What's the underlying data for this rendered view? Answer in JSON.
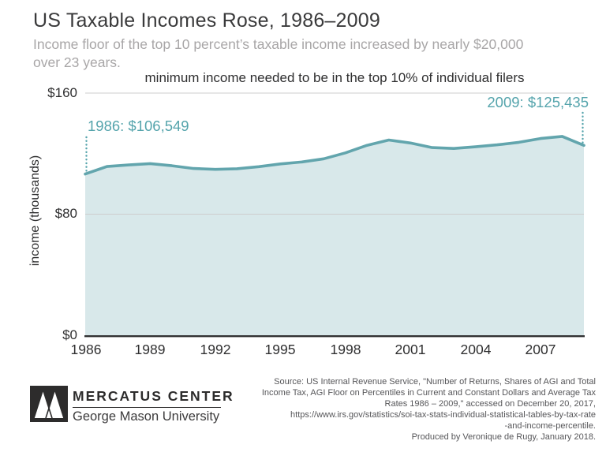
{
  "header": {
    "title": "US Taxable Incomes Rose, 1986–2009",
    "subtitle_lines": [
      "Income floor of the top 10 percent’s taxable income increased by nearly $20,000",
      "over 23 years."
    ]
  },
  "chart": {
    "title": "minimum income needed to be in the top 10% of individual filers",
    "y_axis_label": "income (thousands)",
    "y_ticks": [
      "$160",
      "$80",
      "$0"
    ],
    "x_ticks": [
      "1986",
      "1989",
      "1992",
      "1995",
      "1998",
      "2001",
      "2004",
      "2007"
    ],
    "annotations": {
      "start": "1986: $106,549",
      "end": "2009: $125,435"
    },
    "colors": {
      "line": "#62a5ad",
      "fill": "#d8e8ea",
      "annotation": "#55a4ac",
      "grid": "#cdcdcd",
      "axis": "#323233"
    }
  },
  "chart_data": {
    "type": "area",
    "title": "minimum income needed to be in the top 10% of individual filers",
    "xlabel": "",
    "ylabel": "income (thousands)",
    "units": "thousands of dollars",
    "ylim": [
      0,
      160
    ],
    "y_tick_values": [
      0,
      80,
      160
    ],
    "x_tick_labels": [
      "1986",
      "1989",
      "1992",
      "1995",
      "1998",
      "2001",
      "2004",
      "2007"
    ],
    "x": [
      1986,
      1987,
      1988,
      1989,
      1990,
      1991,
      1992,
      1993,
      1994,
      1995,
      1996,
      1997,
      1998,
      1999,
      2000,
      2001,
      2002,
      2003,
      2004,
      2005,
      2006,
      2007,
      2008,
      2009
    ],
    "values": [
      106.549,
      111.5,
      112.5,
      113.4,
      112.0,
      110.2,
      109.6,
      110.0,
      111.4,
      113.2,
      114.5,
      116.6,
      120.5,
      125.5,
      129.0,
      127.0,
      124.0,
      123.4,
      124.5,
      125.8,
      127.5,
      130.0,
      131.4,
      125.435
    ],
    "annotations": [
      {
        "year": 1986,
        "value": 106.549,
        "label": "1986: $106,549"
      },
      {
        "year": 2009,
        "value": 125.435,
        "label": "2009: $125,435"
      }
    ],
    "grid": "horizontal only",
    "legend": "none"
  },
  "footer": {
    "logo_primary": "MERCATUS CENTER",
    "logo_secondary": "George Mason University",
    "source_lines": [
      "Source: US Internal Revenue Service, \"Number of Returns, Shares of AGI and Total",
      "Income Tax, AGI Floor on Percentiles in Current and Constant Dollars and Average Tax",
      "Rates 1986 – 2009,\" accessed on December 20, 2017,",
      "https://www.irs.gov/statistics/soi-tax-stats-individual-statistical-tables-by-tax-rate",
      "-and-income-percentile.",
      "Produced by Veronique de Rugy, January 2018."
    ]
  }
}
